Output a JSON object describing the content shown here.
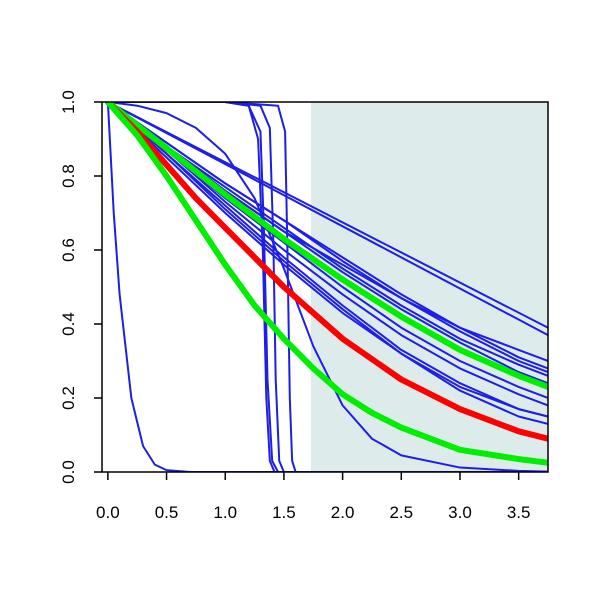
{
  "chart_data": {
    "type": "line",
    "title": "",
    "xlabel": "",
    "ylabel": "",
    "xlim": [
      -0.05,
      3.75
    ],
    "ylim": [
      0.0,
      1.0
    ],
    "x_ticks": [
      0.0,
      0.5,
      1.0,
      1.5,
      2.0,
      2.5,
      3.0,
      3.5
    ],
    "x_tick_labels": [
      "0.0",
      "0.5",
      "1.0",
      "1.5",
      "2.0",
      "2.5",
      "3.0",
      "3.5"
    ],
    "y_ticks": [
      0.0,
      0.2,
      0.4,
      0.6,
      0.8,
      1.0
    ],
    "y_tick_labels": [
      "0.0",
      "0.2",
      "0.4",
      "0.6",
      "0.8",
      "1.0"
    ],
    "grid": false,
    "legend": "none",
    "shaded_region": {
      "x_from": 1.73,
      "x_to": 3.75,
      "color": "#ddeceb"
    },
    "colors": {
      "blue": "#1e1ee6",
      "red": "#ff0000",
      "green": "#00ee00"
    },
    "series": [
      {
        "color": "blue",
        "width": "thin",
        "x": [
          0,
          0.05,
          0.1,
          0.2,
          0.3,
          0.4,
          0.5,
          0.7,
          3.75
        ],
        "y": [
          1.0,
          0.7,
          0.48,
          0.2,
          0.07,
          0.02,
          0.005,
          0.0,
          0.0
        ]
      },
      {
        "color": "blue",
        "width": "thin",
        "x": [
          0,
          0.5,
          1.0,
          1.2,
          1.3,
          1.33,
          1.36,
          1.4,
          1.45,
          3.75
        ],
        "y": [
          1.0,
          1.0,
          1.0,
          0.99,
          0.92,
          0.65,
          0.25,
          0.03,
          0.0,
          0.0
        ]
      },
      {
        "color": "blue",
        "width": "thin",
        "x": [
          0,
          0.5,
          1.0,
          1.2,
          1.28,
          1.32,
          1.35,
          1.38,
          1.42,
          3.75
        ],
        "y": [
          1.0,
          1.0,
          1.0,
          0.99,
          0.9,
          0.6,
          0.2,
          0.03,
          0.0,
          0.0
        ]
      },
      {
        "color": "blue",
        "width": "thin",
        "x": [
          0,
          0.5,
          1.0,
          1.3,
          1.38,
          1.41,
          1.43,
          1.46,
          1.5,
          3.75
        ],
        "y": [
          1.0,
          1.0,
          1.0,
          0.99,
          0.93,
          0.62,
          0.25,
          0.03,
          0.0,
          0.0
        ]
      },
      {
        "color": "blue",
        "width": "thin",
        "x": [
          0,
          0.5,
          1.0,
          1.45,
          1.51,
          1.53,
          1.55,
          1.57,
          1.6,
          3.75
        ],
        "y": [
          1.0,
          1.0,
          1.0,
          0.99,
          0.92,
          0.6,
          0.2,
          0.03,
          0.0,
          0.0
        ]
      },
      {
        "color": "blue",
        "width": "thin",
        "x": [
          0,
          0.25,
          0.5,
          0.75,
          1.0,
          1.25,
          1.5,
          1.75,
          2.0,
          2.25,
          2.5,
          3.0,
          3.5,
          3.75
        ],
        "y": [
          1.0,
          0.99,
          0.97,
          0.93,
          0.86,
          0.74,
          0.55,
          0.34,
          0.18,
          0.09,
          0.045,
          0.012,
          0.003,
          0.001
        ]
      },
      {
        "color": "blue",
        "width": "thin",
        "x": [
          0,
          3.75
        ],
        "y": [
          1.0,
          0.39
        ]
      },
      {
        "color": "blue",
        "width": "thin",
        "x": [
          0,
          3.75
        ],
        "y": [
          1.0,
          0.37
        ]
      },
      {
        "color": "blue",
        "width": "thin",
        "x": [
          0,
          0.5,
          1.0,
          1.5,
          2.0,
          2.5,
          3.0,
          3.5,
          3.75
        ],
        "y": [
          1.0,
          0.89,
          0.78,
          0.68,
          0.57,
          0.47,
          0.38,
          0.3,
          0.27
        ]
      },
      {
        "color": "blue",
        "width": "thin",
        "x": [
          0,
          0.5,
          1.0,
          1.5,
          2.0,
          2.5,
          3.0,
          3.5,
          3.75
        ],
        "y": [
          1.0,
          0.89,
          0.78,
          0.68,
          0.58,
          0.48,
          0.39,
          0.31,
          0.28
        ]
      },
      {
        "color": "blue",
        "width": "thin",
        "x": [
          0,
          0.5,
          1.0,
          1.5,
          2.0,
          2.5,
          3.0,
          3.5,
          3.75
        ],
        "y": [
          1.0,
          0.88,
          0.77,
          0.66,
          0.55,
          0.45,
          0.36,
          0.29,
          0.26
        ]
      },
      {
        "color": "blue",
        "width": "thin",
        "x": [
          0,
          0.5,
          1.0,
          1.5,
          2.0,
          2.5,
          3.0,
          3.5,
          3.75
        ],
        "y": [
          1.0,
          0.88,
          0.76,
          0.65,
          0.54,
          0.44,
          0.35,
          0.27,
          0.24
        ]
      },
      {
        "color": "blue",
        "width": "thin",
        "x": [
          0,
          0.5,
          1.0,
          1.5,
          2.0,
          2.5,
          3.0,
          3.5,
          3.75
        ],
        "y": [
          1.0,
          0.88,
          0.76,
          0.65,
          0.56,
          0.47,
          0.39,
          0.33,
          0.3
        ]
      },
      {
        "color": "blue",
        "width": "thin",
        "x": [
          0,
          0.5,
          1.0,
          1.5,
          2.0,
          2.5,
          3.0,
          3.5,
          3.75
        ],
        "y": [
          1.0,
          0.87,
          0.74,
          0.62,
          0.5,
          0.39,
          0.3,
          0.23,
          0.2
        ]
      },
      {
        "color": "blue",
        "width": "thin",
        "x": [
          0,
          0.5,
          1.0,
          1.5,
          2.0,
          2.5,
          3.0,
          3.5,
          3.75
        ],
        "y": [
          1.0,
          0.87,
          0.73,
          0.6,
          0.48,
          0.37,
          0.28,
          0.21,
          0.18
        ]
      },
      {
        "color": "blue",
        "width": "thin",
        "x": [
          0,
          0.5,
          1.0,
          1.5,
          2.0,
          2.5,
          3.0,
          3.5,
          3.75
        ],
        "y": [
          1.0,
          0.86,
          0.72,
          0.58,
          0.45,
          0.33,
          0.24,
          0.17,
          0.15
        ]
      },
      {
        "color": "blue",
        "width": "thin",
        "x": [
          0,
          0.5,
          1.0,
          1.5,
          2.0,
          2.5,
          3.0,
          3.5,
          3.75
        ],
        "y": [
          1.0,
          0.86,
          0.71,
          0.57,
          0.44,
          0.32,
          0.22,
          0.15,
          0.13
        ]
      },
      {
        "color": "blue",
        "width": "thin",
        "x": [
          0,
          0.5,
          1.0,
          1.5,
          2.0,
          2.5,
          3.0,
          3.5,
          3.75
        ],
        "y": [
          1.0,
          0.85,
          0.7,
          0.56,
          0.43,
          0.32,
          0.23,
          0.17,
          0.15
        ]
      },
      {
        "color": "green",
        "width": "thick",
        "x": [
          0,
          0.5,
          1.0,
          1.5,
          2.0,
          2.5,
          3.0,
          3.5,
          3.75
        ],
        "y": [
          1.0,
          0.875,
          0.75,
          0.63,
          0.52,
          0.42,
          0.33,
          0.26,
          0.23
        ]
      },
      {
        "color": "red",
        "width": "thick",
        "x": [
          0,
          0.25,
          0.5,
          0.75,
          1.0,
          1.25,
          1.5,
          1.75,
          2.0,
          2.5,
          3.0,
          3.5,
          3.75
        ],
        "y": [
          1.0,
          0.92,
          0.83,
          0.74,
          0.66,
          0.58,
          0.5,
          0.43,
          0.36,
          0.25,
          0.17,
          0.11,
          0.09
        ]
      },
      {
        "color": "green",
        "width": "thick",
        "x": [
          0,
          0.25,
          0.5,
          0.75,
          1.0,
          1.25,
          1.5,
          1.75,
          2.0,
          2.25,
          2.5,
          3.0,
          3.5,
          3.75
        ],
        "y": [
          1.0,
          0.91,
          0.8,
          0.68,
          0.56,
          0.45,
          0.36,
          0.28,
          0.21,
          0.16,
          0.12,
          0.06,
          0.035,
          0.025
        ]
      }
    ]
  }
}
